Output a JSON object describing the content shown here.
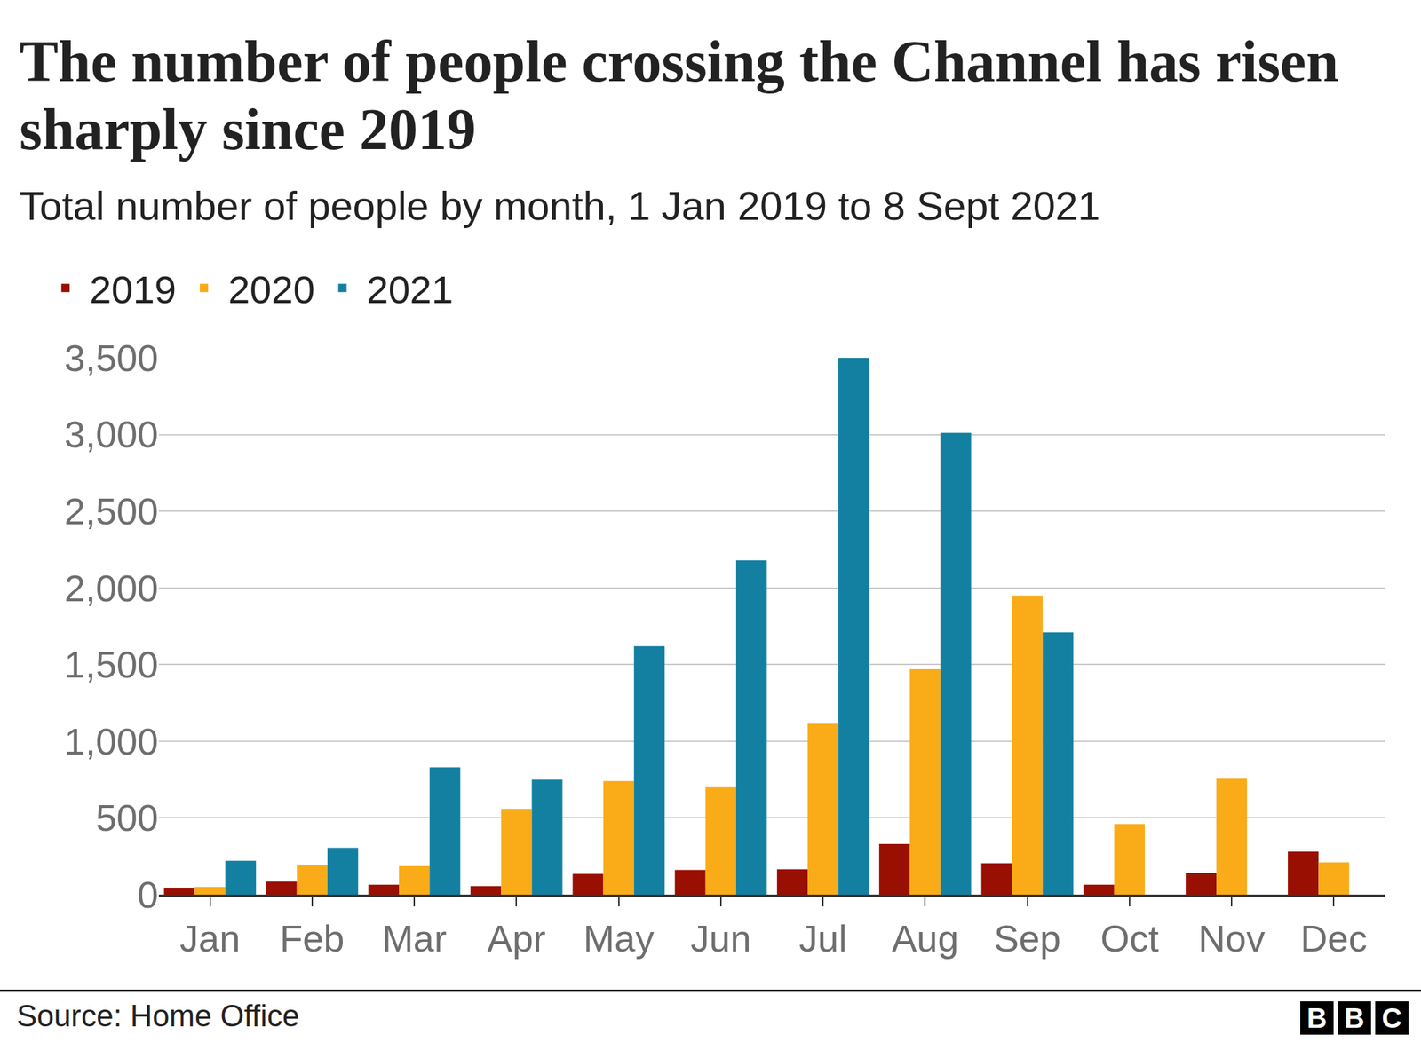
{
  "chart_data": {
    "type": "bar",
    "title": "The number of people crossing the Channel has risen sharply since 2019",
    "subtitle": "Total number of people by month, 1 Jan 2019 to 8 Sept 2021",
    "source": "Source: Home Office",
    "logo": "BBC",
    "categories": [
      "Jan",
      "Feb",
      "Mar",
      "Apr",
      "May",
      "Jun",
      "Jul",
      "Aug",
      "Sep",
      "Oct",
      "Nov",
      "Dec"
    ],
    "series": [
      {
        "name": "2019",
        "color": "#990f02",
        "values": [
          45,
          85,
          65,
          55,
          135,
          160,
          165,
          330,
          205,
          65,
          140,
          280
        ]
      },
      {
        "name": "2020",
        "color": "#faab18",
        "values": [
          50,
          190,
          185,
          560,
          740,
          700,
          1115,
          1470,
          1950,
          460,
          755,
          210
        ]
      },
      {
        "name": "2021",
        "color": "#1380a1",
        "values": [
          220,
          305,
          830,
          750,
          1620,
          2180,
          3500,
          3010,
          1710,
          null,
          null,
          null
        ]
      }
    ],
    "ylim": [
      0,
      3500
    ],
    "yticks": [
      0,
      500,
      {
        "value": 1000,
        "label": "1,000"
      },
      {
        "value": 1500,
        "label": "1,500"
      },
      {
        "value": 2000,
        "label": "2,000"
      },
      {
        "value": 2500,
        "label": "2,500"
      },
      {
        "value": 3000,
        "label": "3,000"
      },
      {
        "value": 3500,
        "label": "3,500"
      }
    ],
    "grid": true,
    "legend": "top-left"
  }
}
